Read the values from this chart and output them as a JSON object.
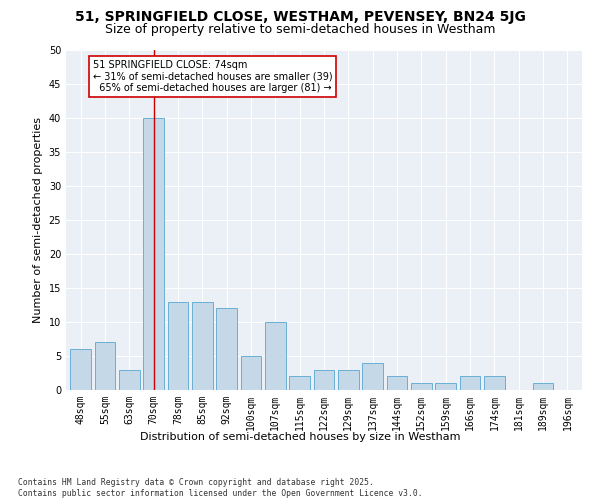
{
  "title1": "51, SPRINGFIELD CLOSE, WESTHAM, PEVENSEY, BN24 5JG",
  "title2": "Size of property relative to semi-detached houses in Westham",
  "xlabel": "Distribution of semi-detached houses by size in Westham",
  "ylabel": "Number of semi-detached properties",
  "categories": [
    "48sqm",
    "55sqm",
    "63sqm",
    "70sqm",
    "78sqm",
    "85sqm",
    "92sqm",
    "100sqm",
    "107sqm",
    "115sqm",
    "122sqm",
    "129sqm",
    "137sqm",
    "144sqm",
    "152sqm",
    "159sqm",
    "166sqm",
    "174sqm",
    "181sqm",
    "189sqm",
    "196sqm"
  ],
  "values": [
    6,
    7,
    3,
    40,
    13,
    13,
    12,
    5,
    10,
    2,
    3,
    3,
    4,
    2,
    1,
    1,
    2,
    2,
    0,
    1,
    0
  ],
  "bar_color": "#c5d8e8",
  "bar_edge_color": "#6aafd6",
  "subject_bar_index": 3,
  "subject_label": "51 SPRINGFIELD CLOSE: 74sqm",
  "pct_smaller": 31,
  "n_smaller": 39,
  "pct_larger": 65,
  "n_larger": 81,
  "vline_color": "#cc0000",
  "annotation_box_color": "#cc0000",
  "ylim": [
    0,
    50
  ],
  "yticks": [
    0,
    5,
    10,
    15,
    20,
    25,
    30,
    35,
    40,
    45,
    50
  ],
  "bg_color": "#eaf0f6",
  "footnote": "Contains HM Land Registry data © Crown copyright and database right 2025.\nContains public sector information licensed under the Open Government Licence v3.0.",
  "title_fontsize": 10,
  "subtitle_fontsize": 9,
  "axis_label_fontsize": 8,
  "tick_fontsize": 7,
  "annot_fontsize": 7
}
